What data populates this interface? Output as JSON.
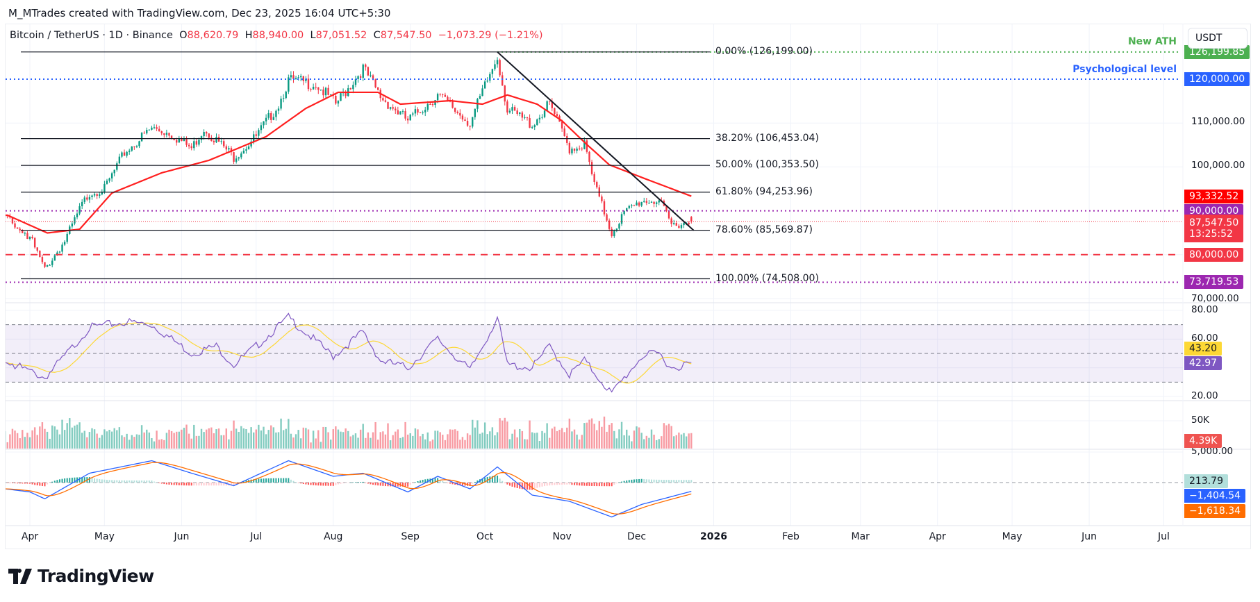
{
  "header": {
    "credit": "M_MTrades created with TradingView.com, Dec 23, 2025 16:04 UTC+5:30"
  },
  "legend": {
    "symbol": "Bitcoin / TetherUS · 1D · Binance",
    "o_label": "O",
    "o": "88,620.79",
    "h_label": "H",
    "h": "88,940.00",
    "l_label": "L",
    "l": "87,051.52",
    "c_label": "C",
    "c": "87,547.50",
    "change": "−1,073.29 (−1.21%)"
  },
  "currency_button": "USDT",
  "annotations": {
    "ath": "New ATH",
    "psych": "Psychological level"
  },
  "colors": {
    "up": "#089981",
    "down": "#f23645",
    "ma": "#ff1f1f",
    "rsi": "#7e57c2",
    "rsi_signal": "#fdd835",
    "macd": "#2962ff",
    "macd_signal": "#ff6d00",
    "ath": "#4caf50",
    "psych": "#2962ff",
    "purple": "#9c27b0"
  },
  "price_axis": [
    "110,000.00",
    "100,000.00",
    "70,000.00"
  ],
  "rsi_axis": [
    "80.00",
    "60.00",
    "20.00"
  ],
  "volume_axis": [
    "50K"
  ],
  "macd_axis": [
    "5,000.00"
  ],
  "tags": [
    {
      "text": "126,199.85",
      "color": "#4caf50",
      "price": 126199.85
    },
    {
      "text": "120,000.00",
      "color": "#2962ff",
      "price": 120000
    },
    {
      "text": "93,332.52",
      "color": "#ff0000",
      "price": 93332.52
    },
    {
      "text": "90,000.00",
      "color": "#9c27b0",
      "price": 90000
    },
    {
      "text": "87,547.50",
      "sub": "13:25:52",
      "color": "#f23645",
      "price": 87547.5
    },
    {
      "text": "80,000.00",
      "color": "#f23645",
      "price": 80000
    },
    {
      "text": "73,719.53",
      "color": "#9c27b0",
      "price": 73719.53
    }
  ],
  "indicator_tags": {
    "rsi_signal": "43.20",
    "rsi": "42.97",
    "volume": "4.39K",
    "macd_hist": "213.79",
    "macd": "−1,404.54",
    "macd_signal": "−1,618.34"
  },
  "x_axis": [
    "Apr",
    "May",
    "Jun",
    "Jul",
    "Aug",
    "Sep",
    "Oct",
    "Nov",
    "Dec",
    "2026",
    "Feb",
    "Mar",
    "Apr",
    "May",
    "Jun",
    "Jul"
  ],
  "logo": "TradingView",
  "chart_data": {
    "type": "candlestick",
    "symbol": "BTCUSDT",
    "interval": "1D",
    "y_range": [
      70000,
      127000
    ],
    "grid": true,
    "fibonacci": [
      {
        "label": "0.00% (126,199.00)",
        "price": 126199
      },
      {
        "label": "38.20% (106,453.04)",
        "price": 106453.04
      },
      {
        "label": "50.00% (100,353.50)",
        "price": 100353.5
      },
      {
        "label": "61.80% (94,253.96)",
        "price": 94253.96
      },
      {
        "label": "78.60% (85,569.87)",
        "price": 85569.87
      },
      {
        "label": "100.00% (74,508.00)",
        "price": 74508
      }
    ],
    "levels": [
      {
        "name": "New ATH",
        "price": 126199.85,
        "style": "dotted",
        "color": "#4caf50"
      },
      {
        "name": "Psychological level",
        "price": 120000,
        "style": "dotted",
        "color": "#2962ff"
      },
      {
        "price": 90000,
        "style": "dotted",
        "color": "#9c27b0"
      },
      {
        "price": 80000,
        "style": "dashed",
        "color": "#f23645"
      },
      {
        "price": 73719.53,
        "style": "dotted",
        "color": "#9c27b0"
      }
    ],
    "trendline": [
      [
        "2025-10-06",
        126199
      ],
      [
        "2025-12-24",
        85500
      ]
    ],
    "closes": [
      [
        "2025-03-22",
        88700
      ],
      [
        "2025-04-01",
        84080
      ],
      [
        "2025-04-07",
        76650
      ],
      [
        "2025-04-15",
        83100
      ],
      [
        "2025-04-22",
        91400
      ],
      [
        "2025-04-25",
        94100
      ],
      [
        "2025-05-01",
        95000
      ],
      [
        "2025-05-09",
        103200
      ],
      [
        "2025-05-20",
        108800
      ],
      [
        "2025-05-27",
        107800
      ],
      [
        "2025-06-05",
        104200
      ],
      [
        "2025-06-10",
        108800
      ],
      [
        "2025-06-22",
        102300
      ],
      [
        "2025-07-01",
        106900
      ],
      [
        "2025-07-10",
        114300
      ],
      [
        "2025-07-14",
        119700
      ],
      [
        "2025-07-25",
        118900
      ],
      [
        "2025-08-02",
        114300
      ],
      [
        "2025-08-13",
        122500
      ],
      [
        "2025-08-20",
        116000
      ],
      [
        "2025-08-31",
        110500
      ],
      [
        "2025-09-12",
        116400
      ],
      [
        "2025-09-25",
        110000
      ],
      [
        "2025-10-06",
        125200
      ],
      [
        "2025-10-10",
        113000
      ],
      [
        "2025-10-20",
        109700
      ],
      [
        "2025-10-27",
        114300
      ],
      [
        "2025-11-04",
        104200
      ],
      [
        "2025-11-10",
        105100
      ],
      [
        "2025-11-14",
        96000
      ],
      [
        "2025-11-21",
        84900
      ],
      [
        "2025-11-26",
        89500
      ],
      [
        "2025-12-03",
        92300
      ],
      [
        "2025-12-10",
        92300
      ],
      [
        "2025-12-15",
        86800
      ],
      [
        "2025-12-23",
        87547.5
      ]
    ],
    "ma": [
      [
        "2025-03-23",
        89000
      ],
      [
        "2025-04-08",
        84950
      ],
      [
        "2025-04-21",
        85800
      ],
      [
        "2025-05-04",
        94050
      ],
      [
        "2025-05-24",
        98650
      ],
      [
        "2025-06-12",
        101500
      ],
      [
        "2025-07-05",
        106900
      ],
      [
        "2025-07-21",
        113350
      ],
      [
        "2025-08-03",
        117000
      ],
      [
        "2025-08-19",
        117000
      ],
      [
        "2025-08-28",
        114300
      ],
      [
        "2025-09-17",
        115100
      ],
      [
        "2025-09-30",
        114300
      ],
      [
        "2025-10-10",
        116400
      ],
      [
        "2025-10-22",
        114300
      ],
      [
        "2025-11-01",
        110500
      ],
      [
        "2025-11-11",
        105100
      ],
      [
        "2025-11-20",
        100500
      ],
      [
        "2025-12-04",
        97400
      ],
      [
        "2025-12-23",
        93332.52
      ]
    ],
    "rsi": {
      "band": [
        30,
        70
      ],
      "values": [
        [
          "2025-03-22",
          45
        ],
        [
          "2025-04-07",
          33
        ],
        [
          "2025-04-15",
          48
        ],
        [
          "2025-04-25",
          68
        ],
        [
          "2025-05-10",
          72
        ],
        [
          "2025-05-20",
          70
        ],
        [
          "2025-06-05",
          50
        ],
        [
          "2025-06-15",
          55
        ],
        [
          "2025-06-22",
          42
        ],
        [
          "2025-07-01",
          55
        ],
        [
          "2025-07-14",
          75
        ],
        [
          "2025-08-01",
          48
        ],
        [
          "2025-08-13",
          65
        ],
        [
          "2025-08-20",
          45
        ],
        [
          "2025-08-31",
          40
        ],
        [
          "2025-09-12",
          60
        ],
        [
          "2025-09-25",
          38
        ],
        [
          "2025-10-06",
          75
        ],
        [
          "2025-10-10",
          42
        ],
        [
          "2025-10-20",
          40
        ],
        [
          "2025-10-27",
          55
        ],
        [
          "2025-11-04",
          35
        ],
        [
          "2025-11-10",
          45
        ],
        [
          "2025-11-21",
          22
        ],
        [
          "2025-12-03",
          48
        ],
        [
          "2025-12-10",
          50
        ],
        [
          "2025-12-15",
          40
        ],
        [
          "2025-12-23",
          42.97
        ]
      ]
    },
    "macd": {
      "values": [
        [
          "2025-03-22",
          -1000
        ],
        [
          "2025-04-01",
          -1500
        ],
        [
          "2025-04-07",
          -2600
        ],
        [
          "2025-04-25",
          1500
        ],
        [
          "2025-05-20",
          3500
        ],
        [
          "2025-06-05",
          1500
        ],
        [
          "2025-06-22",
          -500
        ],
        [
          "2025-07-14",
          3500
        ],
        [
          "2025-08-01",
          1000
        ],
        [
          "2025-08-13",
          1500
        ],
        [
          "2025-08-31",
          -1500
        ],
        [
          "2025-09-12",
          1000
        ],
        [
          "2025-09-25",
          -1000
        ],
        [
          "2025-10-06",
          2500
        ],
        [
          "2025-10-20",
          -2000
        ],
        [
          "2025-11-04",
          -3000
        ],
        [
          "2025-11-21",
          -5500
        ],
        [
          "2025-12-03",
          -3500
        ],
        [
          "2025-12-23",
          -1404.54
        ]
      ]
    }
  }
}
